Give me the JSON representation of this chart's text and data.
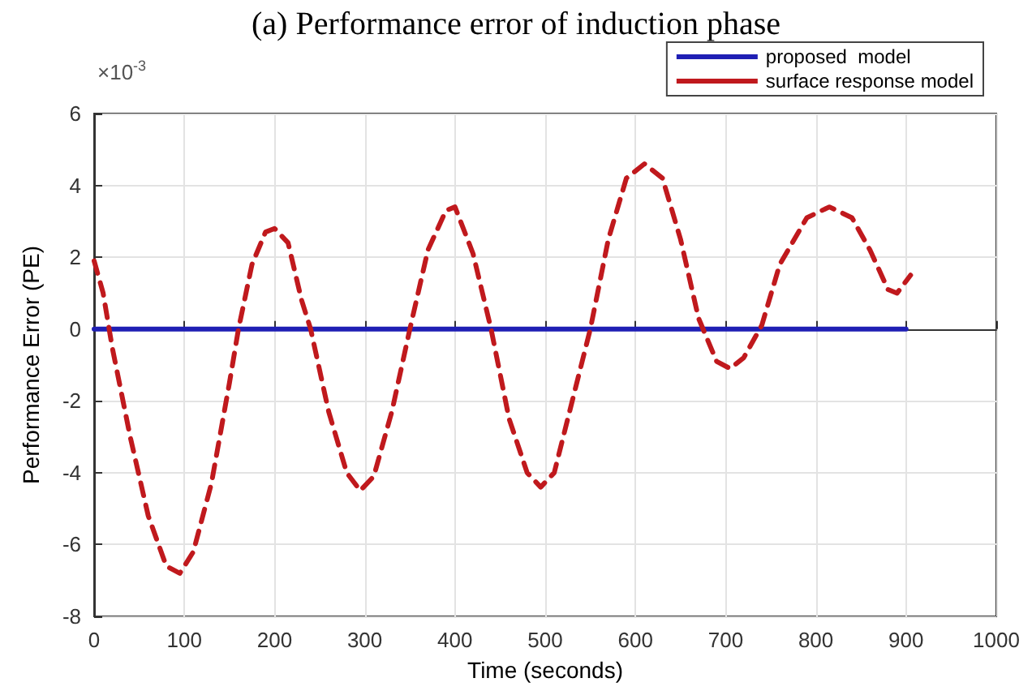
{
  "chart_data": {
    "type": "line",
    "title": "(a) Performance error of induction phase",
    "xlabel": "Time (seconds)",
    "ylabel": "Performance Error (PE)",
    "annotations": [
      "×10$^{-3}$"
    ],
    "series": [
      {
        "name": "proposed  model",
        "color": "#1f1fb4",
        "line_style": "solid",
        "x": [
          0,
          900
        ],
        "values": [
          0,
          0
        ]
      },
      {
        "name": "surface response model",
        "color": "#c0191d",
        "line_style": "dashed",
        "x": [
          0,
          10,
          20,
          40,
          60,
          80,
          95,
          110,
          130,
          150,
          160,
          175,
          190,
          200,
          215,
          230,
          240,
          260,
          280,
          295,
          310,
          330,
          350,
          370,
          390,
          400,
          420,
          440,
          460,
          480,
          495,
          510,
          530,
          550,
          570,
          590,
          610,
          630,
          650,
          670,
          690,
          705,
          720,
          740,
          760,
          790,
          815,
          840,
          860,
          880,
          890,
          905
        ],
        "values": [
          1.9,
          1.0,
          -0.5,
          -3.0,
          -5.2,
          -6.6,
          -6.8,
          -6.2,
          -4.3,
          -1.5,
          0,
          1.8,
          2.7,
          2.8,
          2.4,
          0.8,
          0,
          -2.3,
          -4.0,
          -4.5,
          -4.1,
          -2.3,
          0,
          2.2,
          3.3,
          3.4,
          2.1,
          0,
          -2.5,
          -4.0,
          -4.4,
          -4.0,
          -2.0,
          0,
          2.5,
          4.2,
          4.6,
          4.2,
          2.5,
          0.3,
          -0.9,
          -1.1,
          -0.8,
          0.1,
          1.8,
          3.1,
          3.4,
          3.1,
          2.2,
          1.1,
          1.0,
          1.5
        ]
      }
    ],
    "xlim": [
      0,
      1000
    ],
    "xticks": [
      0,
      100,
      200,
      300,
      400,
      500,
      600,
      700,
      800,
      900,
      1000
    ],
    "ylim": [
      -8,
      6
    ],
    "yticks": [
      -8,
      -6,
      -4,
      -2,
      0,
      2,
      4,
      6
    ],
    "grid": true,
    "legend": "top right",
    "marker": "none"
  }
}
